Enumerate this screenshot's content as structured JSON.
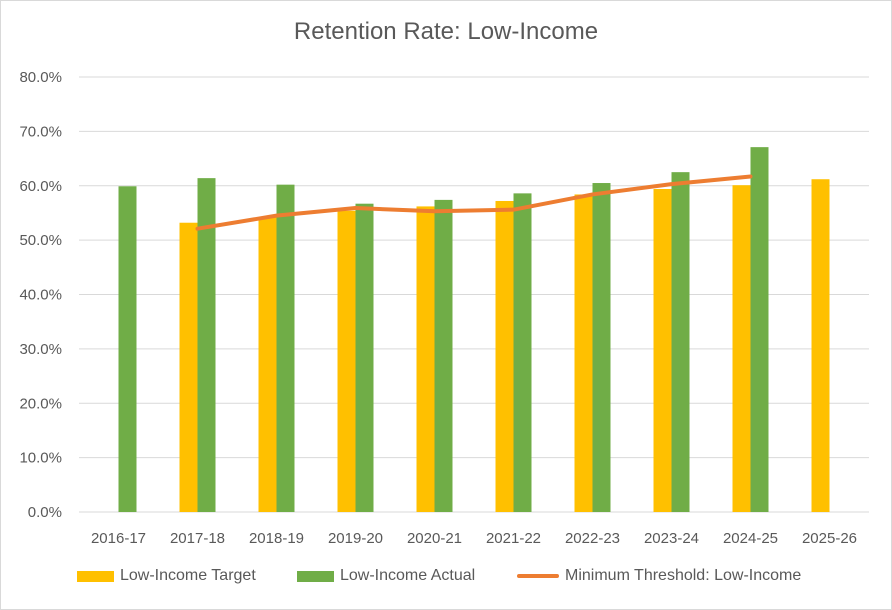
{
  "colors": {
    "target": "#FFC000",
    "actual": "#70AD47",
    "threshold": "#ED7D31",
    "grid": "#d9d9d9",
    "text": "#595959"
  },
  "chart_data": {
    "type": "bar",
    "title": "Retention Rate: Low-Income",
    "xlabel": "",
    "ylabel": "",
    "ylim": [
      0,
      80
    ],
    "yticks": [
      "0.0%",
      "10.0%",
      "20.0%",
      "30.0%",
      "40.0%",
      "50.0%",
      "60.0%",
      "70.0%",
      "80.0%"
    ],
    "grid": true,
    "legend_position": "bottom",
    "categories": [
      "2016-17",
      "2017-18",
      "2018-19",
      "2019-20",
      "2020-21",
      "2021-22",
      "2022-23",
      "2023-24",
      "2024-25",
      "2025-26"
    ],
    "series": [
      {
        "name": "Low-Income Target",
        "type": "bar",
        "values": [
          null,
          53.2,
          54.2,
          55.4,
          56.2,
          57.2,
          58.4,
          59.4,
          60.1,
          61.2
        ]
      },
      {
        "name": "Low-Income Actual",
        "type": "bar",
        "values": [
          59.9,
          61.4,
          60.2,
          56.7,
          57.4,
          58.6,
          60.5,
          62.5,
          67.1,
          null
        ]
      },
      {
        "name": "Minimum Threshold: Low-Income",
        "type": "line",
        "values": [
          null,
          52.1,
          54.5,
          55.9,
          55.3,
          55.6,
          58.4,
          60.3,
          61.7,
          null
        ]
      }
    ]
  }
}
